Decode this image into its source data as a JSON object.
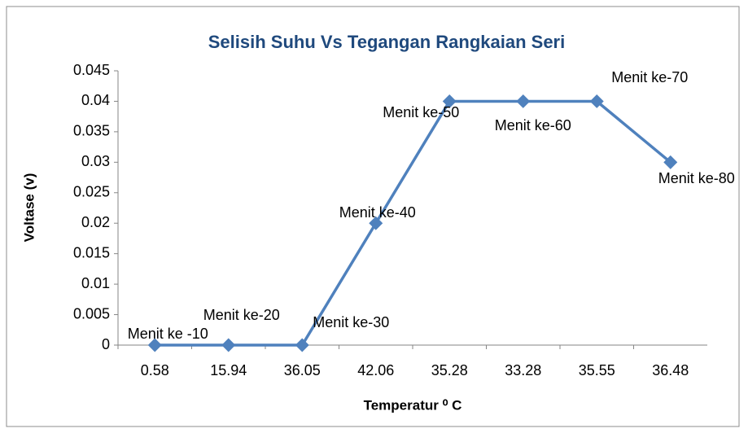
{
  "chart_data": {
    "type": "line",
    "title": "Selisih Suhu Vs Tegangan Rangkaian Seri",
    "x_label": "Temperatur ⁰ C",
    "y_label": "Voltase (v)",
    "categories": [
      "0.58",
      "15.94",
      "36.05",
      "42.06",
      "35.28",
      "33.28",
      "35.55",
      "36.48"
    ],
    "series": [
      {
        "name": "Voltase",
        "color": "#4f81bd",
        "values": [
          0,
          0,
          0,
          0.02,
          0.04,
          0.04,
          0.04,
          0.03
        ]
      }
    ],
    "point_labels": [
      "Menit ke -10",
      "Menit ke-20",
      "Menit ke-30",
      "Menit ke-40",
      "Menit ke-50",
      "Menit ke-60",
      "Menit ke-70",
      "Menit ke-80"
    ],
    "ylim": [
      0,
      0.045
    ],
    "yticks": [
      0,
      0.005,
      0.01,
      0.015,
      0.02,
      0.025,
      0.03,
      0.035,
      0.04,
      0.045
    ],
    "grid": false
  }
}
